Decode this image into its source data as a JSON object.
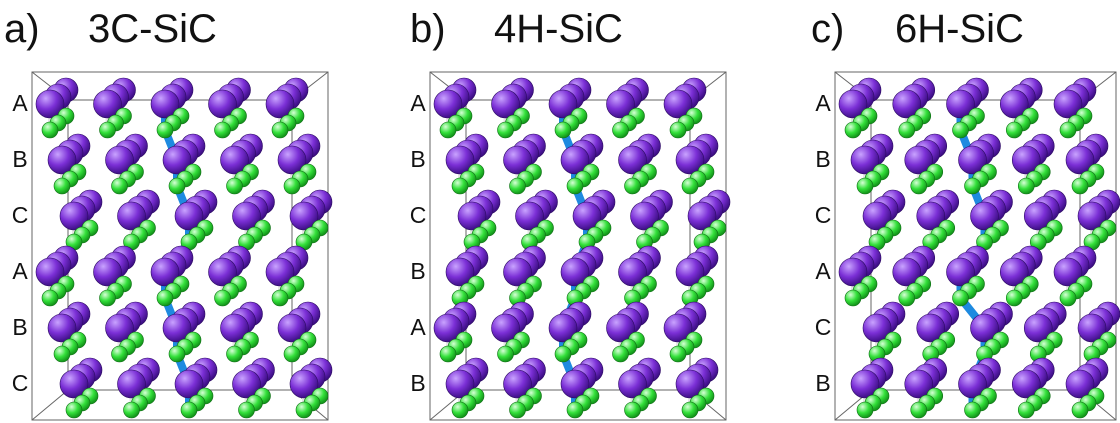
{
  "panels": [
    {
      "label": "a)",
      "name": "3C-SiC",
      "stacking": [
        "A",
        "B",
        "C",
        "A",
        "B",
        "C"
      ]
    },
    {
      "label": "b)",
      "name": "4H-SiC",
      "stacking": [
        "A",
        "B",
        "C",
        "B",
        "A",
        "B"
      ]
    },
    {
      "label": "c)",
      "name": "6H-SiC",
      "stacking": [
        "A",
        "B",
        "C",
        "A",
        "C",
        "B"
      ]
    }
  ],
  "colors": {
    "silicon": "#7b2fd6",
    "carbon": "#33e03a",
    "bond": "#e6e6e6",
    "highlight_bond": "#1e8ae0",
    "cell_frame": "#666666"
  }
}
